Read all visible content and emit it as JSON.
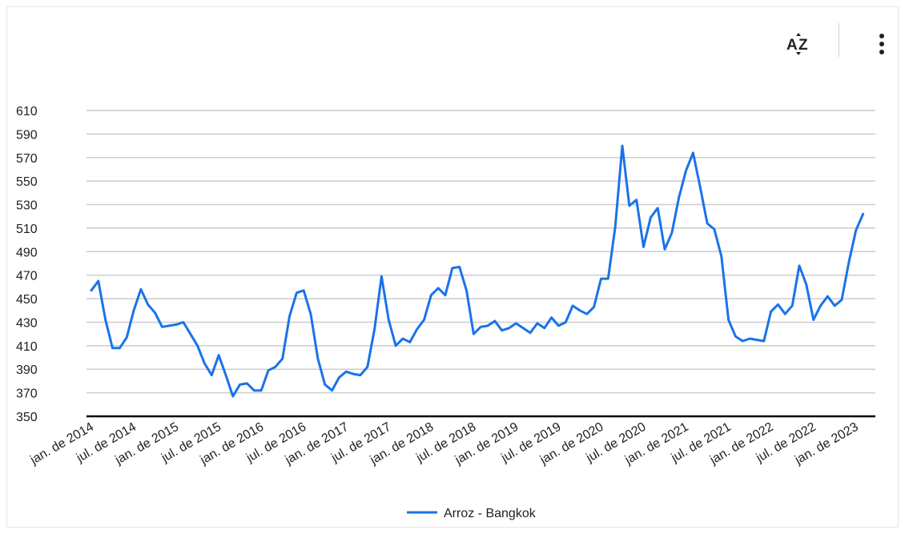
{
  "toolbar": {
    "sort_icon": "sort-az-icon",
    "more_icon": "more-vertical-icon"
  },
  "colors": {
    "series": "#1a73e8",
    "grid": "#cccccc",
    "baseline": "#000000",
    "text": "#202124"
  },
  "chart_data": {
    "type": "line",
    "title": "",
    "xlabel": "",
    "ylabel": "",
    "ylim": [
      350,
      610
    ],
    "y_ticks": [
      350,
      370,
      390,
      410,
      430,
      450,
      470,
      490,
      510,
      530,
      550,
      570,
      590,
      610
    ],
    "x_tick_labels": [
      "jan. de 2014",
      "jul. de 2014",
      "jan. de 2015",
      "jul. de 2015",
      "jan. de 2016",
      "jul. de 2016",
      "jan. de 2017",
      "jul. de 2017",
      "jan. de 2018",
      "jul. de 2018",
      "jan. de 2019",
      "jul. de 2019",
      "jan. de 2020",
      "jul. de 2020",
      "jan. de 2021",
      "jul. de 2021",
      "jan. de 2022",
      "jul. de 2022",
      "jan. de 2023"
    ],
    "x_start": "2014-01",
    "x_frequency": "monthly",
    "grid": true,
    "legend_position": "bottom",
    "series": [
      {
        "name": "Arroz - Bangkok",
        "values": [
          457,
          465,
          432,
          408,
          408,
          417,
          440,
          458,
          445,
          438,
          426,
          427,
          428,
          430,
          420,
          410,
          395,
          385,
          402,
          385,
          367,
          377,
          378,
          372,
          372,
          389,
          392,
          399,
          435,
          455,
          457,
          437,
          399,
          377,
          372,
          383,
          388,
          386,
          385,
          392,
          424,
          469,
          432,
          410,
          416,
          413,
          424,
          432,
          453,
          459,
          453,
          476,
          477,
          457,
          420,
          426,
          427,
          431,
          423,
          425,
          429,
          425,
          421,
          429,
          425,
          434,
          427,
          430,
          444,
          440,
          437,
          443,
          467,
          467,
          511,
          580,
          529,
          534,
          494,
          519,
          527,
          492,
          506,
          536,
          559,
          574,
          545,
          514,
          509,
          486,
          432,
          418,
          414,
          416,
          415,
          414,
          439,
          445,
          437,
          444,
          478,
          462,
          432,
          444,
          452,
          444,
          449,
          481,
          508,
          522
        ]
      }
    ]
  }
}
